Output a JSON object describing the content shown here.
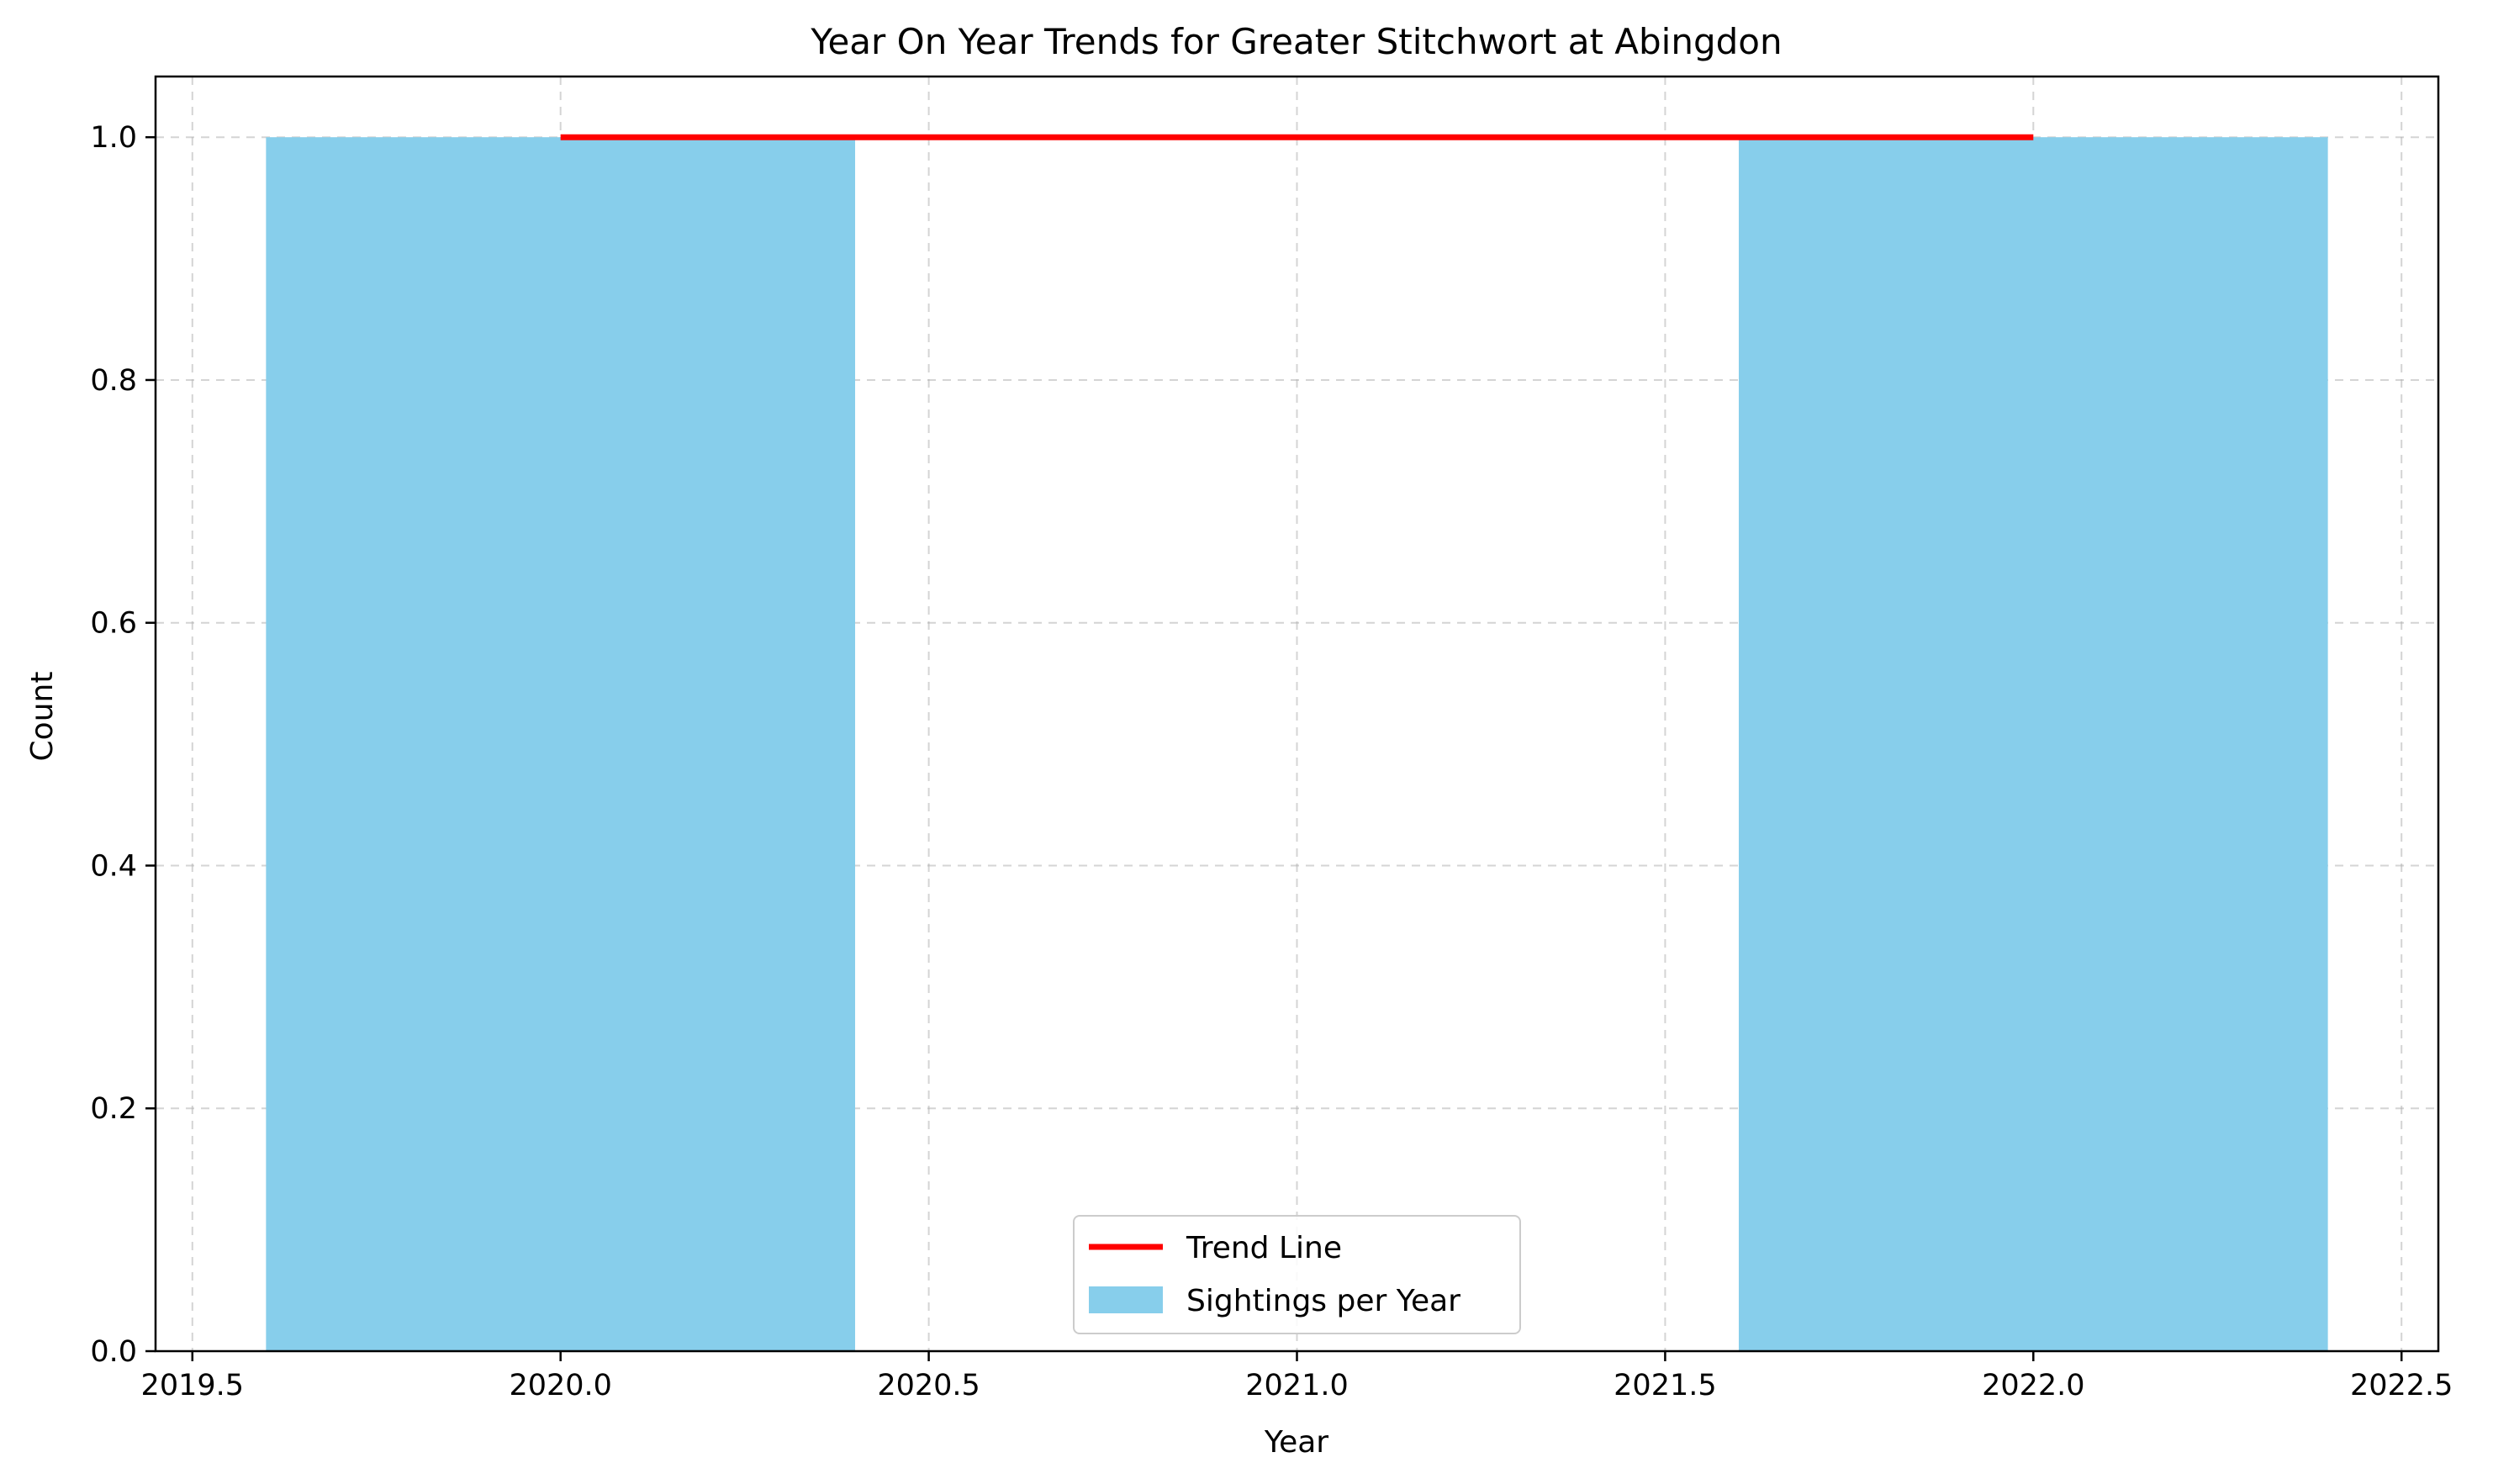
{
  "chart_data": {
    "type": "bar",
    "title": "Year On Year Trends for Greater Stitchwort at Abingdon",
    "xlabel": "Year",
    "ylabel": "Count",
    "xlim": [
      2019.45,
      2022.55
    ],
    "ylim": [
      0,
      1.05
    ],
    "xticks": [
      2019.5,
      2020.0,
      2020.5,
      2021.0,
      2021.5,
      2022.0,
      2022.5
    ],
    "xtick_labels": [
      "2019.5",
      "2020.0",
      "2020.5",
      "2021.0",
      "2021.5",
      "2022.0",
      "2022.5"
    ],
    "yticks": [
      0,
      0.2,
      0.4,
      0.6,
      0.8,
      1.0
    ],
    "ytick_labels": [
      "0.0",
      "0.2",
      "0.4",
      "0.6",
      "0.8",
      "1.0"
    ],
    "grid": true,
    "legend_position": "bottom-center",
    "bar_width": 0.8,
    "series": [
      {
        "name": "Sightings per Year",
        "kind": "bar",
        "color": "#87ceeb",
        "x": [
          2020,
          2022
        ],
        "values": [
          1,
          1
        ]
      },
      {
        "name": "Trend Line",
        "kind": "line",
        "color": "#ff0000",
        "x": [
          2020,
          2022
        ],
        "values": [
          1,
          1
        ]
      }
    ]
  }
}
